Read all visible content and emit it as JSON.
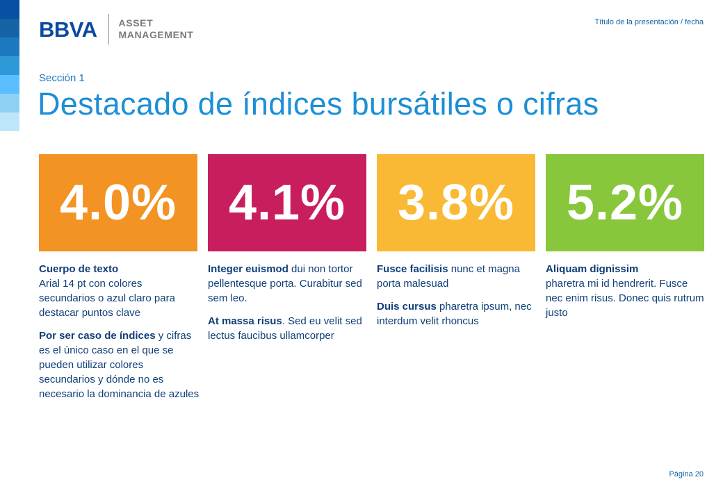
{
  "header": {
    "logo_brand": "BBVA",
    "logo_line1": "ASSET",
    "logo_line2": "MANAGEMENT",
    "presentation_title": "Título de la presentación / fecha"
  },
  "section_label": "Sección 1",
  "page_title": "Destacado de índices bursátiles o cifras",
  "colors": {
    "orange": "#f39324",
    "magenta": "#c91e5d",
    "yellow": "#f9b934",
    "green": "#88c73c",
    "title_blue": "#1c8fd6",
    "text_navy": "#0f3f78"
  },
  "stats": [
    {
      "value": "4.0%",
      "paragraphs": [
        {
          "bold": "Cuerpo de texto",
          "rest": "Arial 14 pt con colores secundarios o azul claro para destacar puntos clave"
        },
        {
          "bold": "Por ser caso de índices",
          "rest": " y cifras es el único caso en el que se pueden utilizar colores secundarios y dónde no es necesario la dominancia de azules"
        }
      ]
    },
    {
      "value": "4.1%",
      "paragraphs": [
        {
          "bold": "Integer euismod",
          "rest": " dui non tortor pellentesque porta. Curabitur sed sem leo."
        },
        {
          "bold": "At massa risus",
          "rest": ". Sed eu velit sed lectus faucibus ullamcorper"
        }
      ]
    },
    {
      "value": "3.8%",
      "paragraphs": [
        {
          "bold": "Fusce facilisis",
          "rest": " nunc et magna porta malesuad"
        },
        {
          "bold": "Duis cursus",
          "rest": " pharetra ipsum, nec interdum velit rhoncus"
        }
      ]
    },
    {
      "value": "5.2%",
      "paragraphs": [
        {
          "bold": "Aliquam dignissim",
          "rest": "pharetra mi id hendrerit. Fusce nec enim risus. Donec quis rutrum justo"
        }
      ]
    }
  ],
  "footer": {
    "page_number": "Página 20"
  }
}
